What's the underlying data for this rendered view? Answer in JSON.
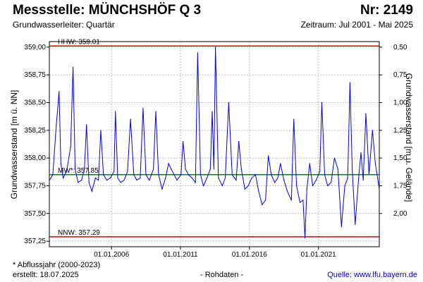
{
  "header": {
    "title": "Messstelle: MÜNCHSHÖF Q 3",
    "nr": "Nr: 2149",
    "aquifer": "Grundwasserleiter: Quartär",
    "period": "Zeitraum: Jul 2001 - Mai 2025"
  },
  "footer": {
    "note": "* Abflussjahr (2000-2023)",
    "created": "erstellt:  18.07.2025",
    "rawdata": "- Rohdaten -",
    "source": "Quelle:  www.lfu.bayern.de"
  },
  "colors": {
    "series": "#0000ee",
    "reference_high": "#dd0000",
    "reference_low": "#dd0000",
    "mean": "#008800",
    "grid": "#bbbbbb"
  },
  "chart_data": {
    "type": "line",
    "title": "Messstelle: MÜNCHSHÖF Q 3",
    "xlabel": "",
    "ylabel": "Grundwasserstand [m ü. NN]",
    "ylabel_right": "Grundwasserstand [m u. Gelände]",
    "ylim": [
      357.2,
      359.05
    ],
    "xlim": [
      "2001-07-01",
      "2025-05-31"
    ],
    "x_ticks": [
      "01.01.2006",
      "01.01.2011",
      "01.01.2016",
      "01.01.2021"
    ],
    "y_ticks": [
      "357,25",
      "357,50",
      "357,75",
      "358,00",
      "358,25",
      "358,50",
      "358,75",
      "359,00"
    ],
    "y_ticks_right": [
      "0,50",
      "0,75",
      "1,00",
      "1,25",
      "1,50",
      "1,75",
      "2,00"
    ],
    "grid": true,
    "reference_lines": [
      {
        "label": "HHW: 359.01",
        "value": 359.01,
        "color": "#dd0000"
      },
      {
        "label": "MW*: 357.85",
        "value": 357.85,
        "color": "#008800"
      },
      {
        "label": "NNW: 357.29",
        "value": 357.29,
        "color": "#dd0000"
      }
    ],
    "series": [
      {
        "x": [
          "2001-07-01",
          "2001-10-01",
          "2002-01-01",
          "2002-03-15",
          "2002-05-01",
          "2002-07-01",
          "2002-10-01",
          "2003-01-15",
          "2003-03-20",
          "2003-05-15",
          "2003-08-01",
          "2003-11-01",
          "2004-01-15",
          "2004-03-10",
          "2004-05-15",
          "2004-08-01",
          "2004-11-01",
          "2005-01-20",
          "2005-03-25",
          "2005-06-01",
          "2005-09-01",
          "2005-12-01",
          "2006-03-10",
          "2006-04-15",
          "2006-06-15",
          "2006-09-01",
          "2006-12-01",
          "2007-03-01",
          "2007-05-20",
          "2007-08-15",
          "2007-11-01",
          "2008-02-01",
          "2008-04-15",
          "2008-07-01",
          "2008-10-01",
          "2009-01-15",
          "2009-03-20",
          "2009-06-01",
          "2009-09-01",
          "2009-12-01",
          "2010-02-20",
          "2010-05-01",
          "2010-07-15",
          "2010-10-01",
          "2011-01-15",
          "2011-03-10",
          "2011-05-15",
          "2011-08-01",
          "2011-11-01",
          "2012-02-01",
          "2012-04-01",
          "2012-06-15",
          "2012-09-01",
          "2012-12-01",
          "2013-03-01",
          "2013-04-20",
          "2013-06-05",
          "2013-07-15",
          "2013-10-01",
          "2014-01-15",
          "2014-04-01",
          "2014-07-01",
          "2014-10-01",
          "2015-01-15",
          "2015-03-25",
          "2015-06-01",
          "2015-09-01",
          "2015-12-01",
          "2016-03-01",
          "2016-06-10",
          "2016-09-01",
          "2016-12-01",
          "2017-03-01",
          "2017-05-15",
          "2017-08-01",
          "2017-11-01",
          "2018-01-20",
          "2018-04-01",
          "2018-07-01",
          "2018-10-01",
          "2019-01-15",
          "2019-03-20",
          "2019-06-01",
          "2019-09-01",
          "2019-11-20",
          "2020-01-10",
          "2020-03-01",
          "2020-05-15",
          "2020-08-01",
          "2020-11-01",
          "2021-02-05",
          "2021-04-01",
          "2021-06-15",
          "2021-09-01",
          "2021-12-01",
          "2022-03-01",
          "2022-06-01",
          "2022-09-01",
          "2022-12-01",
          "2023-02-15",
          "2023-04-15",
          "2023-06-15",
          "2023-09-01",
          "2023-12-01",
          "2024-02-01",
          "2024-04-01",
          "2024-06-10",
          "2024-09-01",
          "2024-12-01",
          "2025-02-15",
          "2025-05-31"
        ],
        "values": [
          357.8,
          357.85,
          358.3,
          358.6,
          357.95,
          357.82,
          357.88,
          358.1,
          358.82,
          357.9,
          357.78,
          357.8,
          357.9,
          358.3,
          357.78,
          357.7,
          357.82,
          357.8,
          358.25,
          357.85,
          357.8,
          357.82,
          357.88,
          358.42,
          357.82,
          357.78,
          357.8,
          357.88,
          358.35,
          357.85,
          357.8,
          357.82,
          358.45,
          357.85,
          357.8,
          357.9,
          358.42,
          357.85,
          357.72,
          357.82,
          357.95,
          357.9,
          357.85,
          357.8,
          357.85,
          358.15,
          357.9,
          357.85,
          357.82,
          357.78,
          358.95,
          357.85,
          357.75,
          357.82,
          357.9,
          358.42,
          357.9,
          359.0,
          357.82,
          357.75,
          357.82,
          358.5,
          357.85,
          357.8,
          358.15,
          357.9,
          357.72,
          357.75,
          357.82,
          357.85,
          357.7,
          357.58,
          357.62,
          358.02,
          357.85,
          357.78,
          357.82,
          357.95,
          357.8,
          357.7,
          357.62,
          358.35,
          357.75,
          357.6,
          357.62,
          357.28,
          357.72,
          357.95,
          357.75,
          357.8,
          357.88,
          358.5,
          357.85,
          357.75,
          357.78,
          358.0,
          357.9,
          357.38,
          357.75,
          357.82,
          358.68,
          357.9,
          357.4,
          357.82,
          358.05,
          357.8,
          358.4,
          357.85,
          358.25,
          357.95,
          357.72
        ]
      }
    ]
  }
}
